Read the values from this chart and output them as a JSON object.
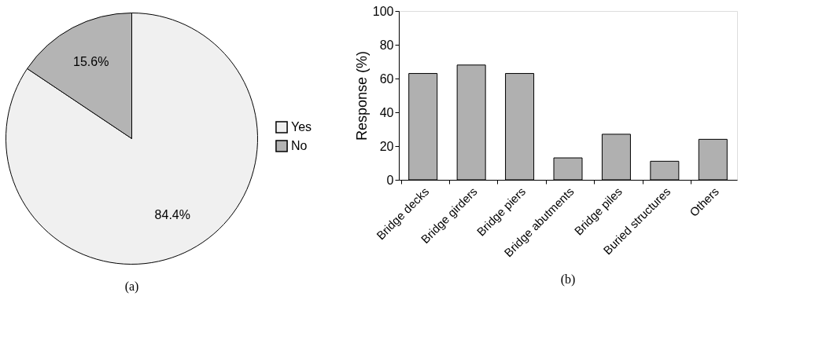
{
  "chart_data": [
    {
      "type": "pie",
      "categories": [
        "Yes",
        "No"
      ],
      "values": [
        84.4,
        15.6
      ],
      "colors": [
        "#f0f0f0",
        "#b4b4b4"
      ],
      "value_labels": [
        "84.4%",
        "15.6%"
      ],
      "legend": "right",
      "annotations": [
        "(a)"
      ]
    },
    {
      "type": "bar",
      "categories": [
        "Bridge decks",
        "Bridge girders",
        "Bridge piers",
        "Bridge abutments",
        "Bridge piles",
        "Buried structures",
        "Others"
      ],
      "values": [
        63,
        68,
        63,
        13,
        27,
        11,
        24
      ],
      "color": "#b0b0b0",
      "ylabel": "Response (%)",
      "ylim": [
        0,
        100
      ],
      "yticks": [
        0,
        20,
        40,
        60,
        80,
        100
      ],
      "grid": false,
      "annotations": [
        "(b)"
      ]
    }
  ]
}
